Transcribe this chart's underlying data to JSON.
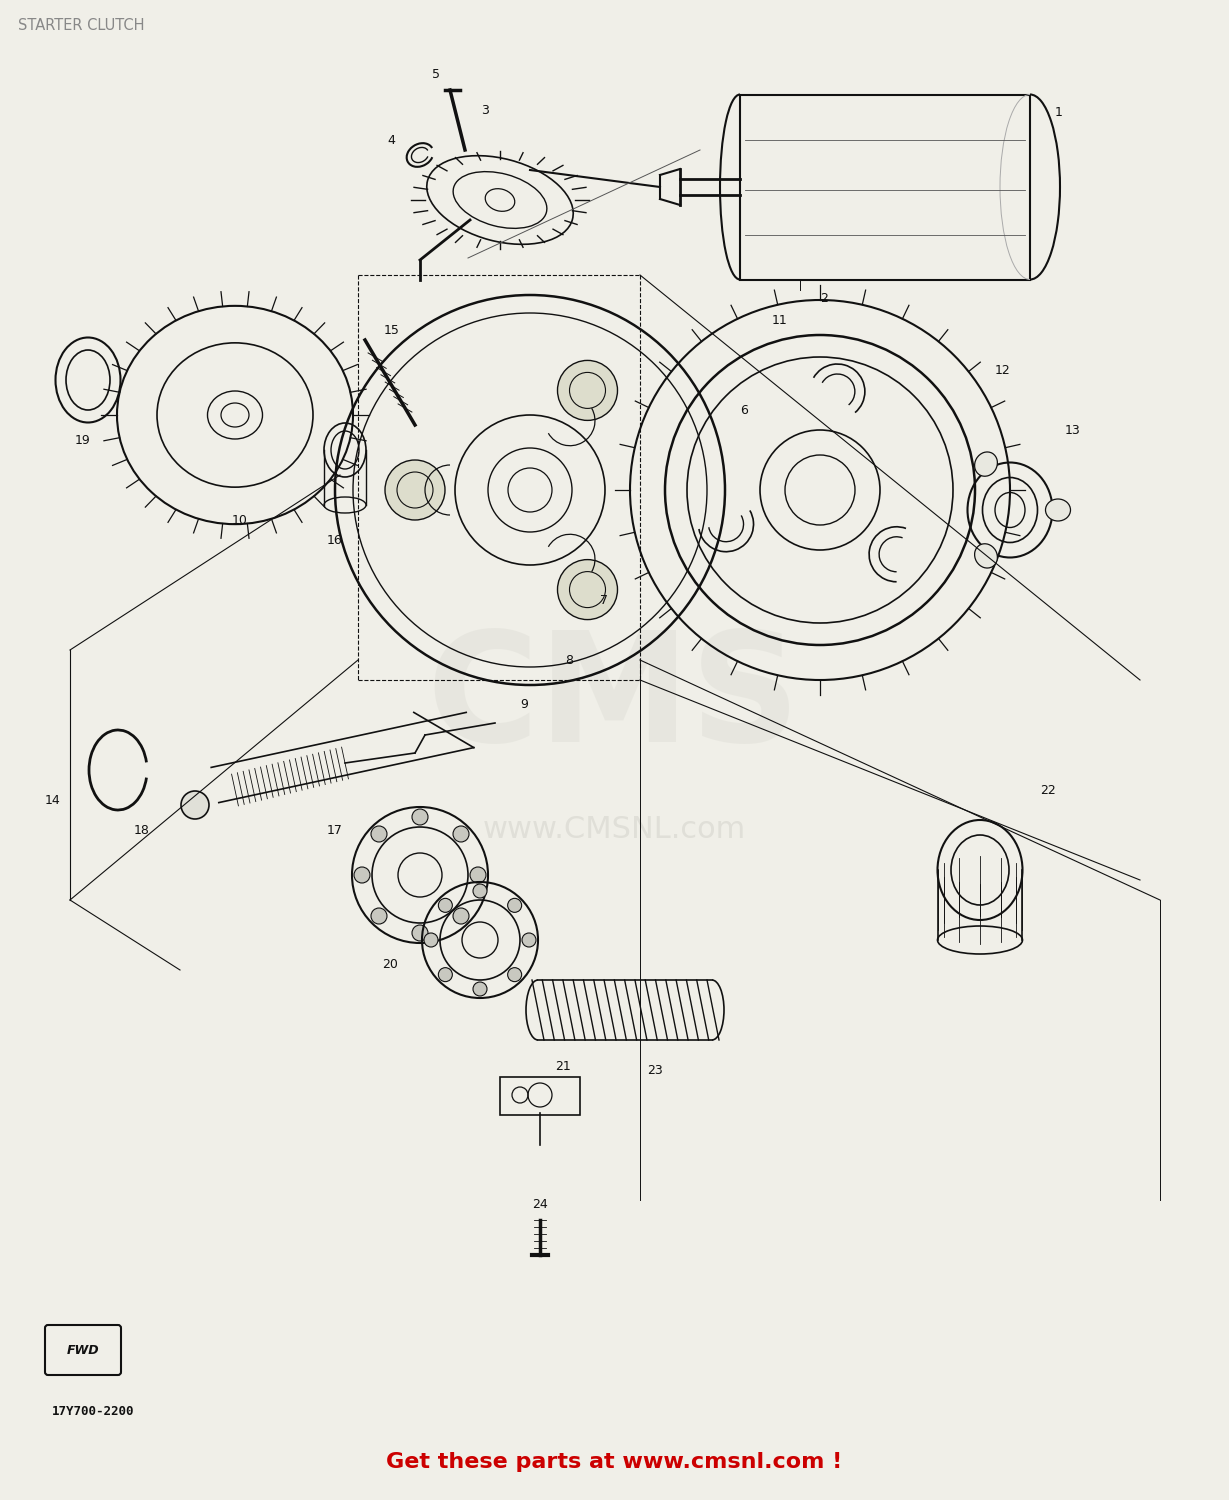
{
  "title": "STARTER CLUTCH",
  "title_color": "#888888",
  "title_fontsize": 10.5,
  "background_color": "#f0efe8",
  "part_number": "17Y700-2200",
  "footer_text": "Get these parts at www.cmsnl.com !",
  "footer_color": "#cc0000",
  "footer_fontsize": 16,
  "label_fontsize": 9,
  "figsize": [
    12.29,
    15.0
  ],
  "dpi": 100,
  "line_color": "#111111",
  "lw": 1.0
}
